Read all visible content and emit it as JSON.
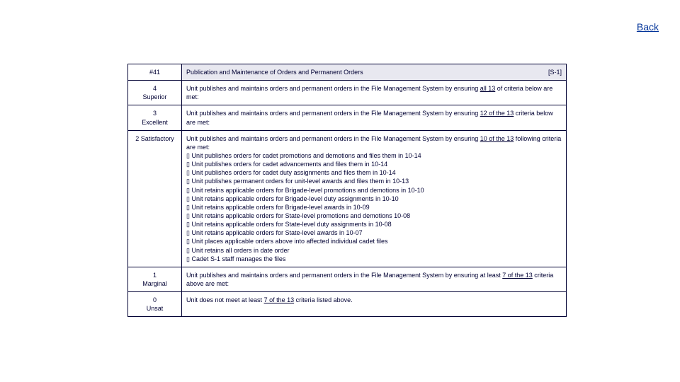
{
  "nav": {
    "back": "Back"
  },
  "header": {
    "id": "#41",
    "title": "Publication and Maintenance of Orders and Permanent Orders",
    "code": "[S-1]"
  },
  "rows": {
    "r4": {
      "score": "4",
      "label": "Superior",
      "pre": "Unit publishes and maintains orders and permanent orders in the File Management System by ensuring ",
      "u": "all 13",
      "post": " of criteria below are met:"
    },
    "r3": {
      "score": "3",
      "label": "Excellent",
      "pre": "Unit publishes and maintains orders and permanent orders in the File Management System by ensuring ",
      "u": "12 of the 13",
      "post": " criteria below are met:"
    },
    "r2": {
      "label": "2 Satisfactory",
      "pre": "Unit publishes and maintains orders and permanent orders in the File Management System by ensuring ",
      "u": "10 of the 13",
      "post": " following criteria are met:",
      "b1": "▯ Unit publishes orders for cadet promotions and demotions and files them in 10-14",
      "b2": "▯ Unit publishes orders for cadet advancements and files them in 10-14",
      "b3": "▯ Unit publishes orders for cadet duty assignments and files them in 10-14",
      "b4": "▯ Unit publishes permanent orders for unit-level awards and files them in 10-13",
      "b5": "▯ Unit retains applicable orders for Brigade-level promotions and demotions in 10-10",
      "b6": "▯ Unit retains applicable orders for Brigade-level duty assignments in 10-10",
      "b7": "▯ Unit retains applicable orders for Brigade-level awards in 10-09",
      "b8": "▯ Unit retains applicable orders for State-level promotions and demotions 10-08",
      "b9": "▯ Unit retains applicable orders for State-level duty assignments in 10-08",
      "b10": "▯ Unit retains applicable orders for State-level awards in 10-07",
      "b11": "▯ Unit places applicable orders above into affected individual cadet files",
      "b12": "▯ Unit retains all orders in date order",
      "b13": "▯ Cadet S-1 staff manages the files"
    },
    "r1": {
      "score": "1",
      "label": "Marginal",
      "pre": "Unit publishes and maintains orders and permanent orders in the File Management System by ensuring at least ",
      "u": "7 of the 13",
      "post": " criteria above are met:"
    },
    "r0": {
      "score": "0",
      "label": "Unsat",
      "pre": "Unit does not meet at least ",
      "u": "7 of the 13",
      "post": " criteria listed above."
    }
  }
}
